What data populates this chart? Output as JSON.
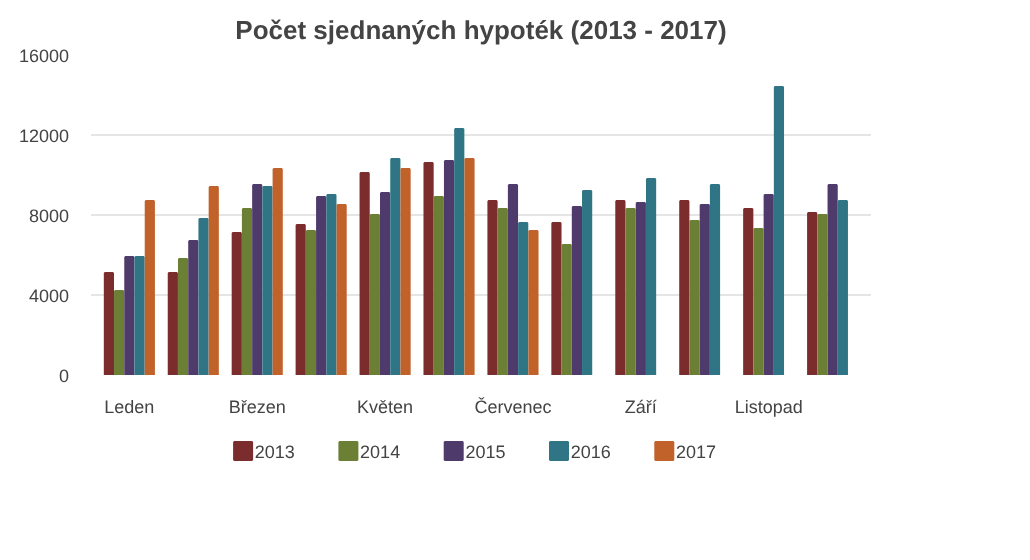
{
  "chart_data": {
    "type": "bar",
    "title": "Počet sjednaných hypoték (2013 - 2017)",
    "categories": [
      "Leden",
      null,
      "Březen",
      null,
      "Květen",
      null,
      "Červenec",
      null,
      "Září",
      null,
      "Listopad",
      null
    ],
    "series": [
      {
        "name": "2013",
        "color": "#7b2c2c",
        "values": [
          5100,
          5100,
          7100,
          7500,
          10100,
          10600,
          8700,
          7600,
          8700,
          8700,
          8300,
          8100
        ]
      },
      {
        "name": "2014",
        "color": "#6b7f35",
        "values": [
          4200,
          5800,
          8300,
          7200,
          8000,
          8900,
          8300,
          6500,
          8300,
          7700,
          7300,
          8000
        ]
      },
      {
        "name": "2015",
        "color": "#4f3b6b",
        "values": [
          5900,
          6700,
          9500,
          8900,
          9100,
          10700,
          9500,
          8400,
          8600,
          8500,
          9000,
          9500
        ]
      },
      {
        "name": "2016",
        "color": "#2f7585",
        "values": [
          5900,
          7800,
          9400,
          9000,
          10800,
          12300,
          7600,
          9200,
          9800,
          9500,
          14400,
          8700
        ]
      },
      {
        "name": "2017",
        "color": "#c0622a",
        "values": [
          8700,
          9400,
          10300,
          8500,
          10300,
          10800,
          7200,
          null,
          null,
          null,
          null,
          null
        ]
      }
    ],
    "ylim": [
      0,
      16000
    ],
    "yticks": [
      0,
      4000,
      8000,
      12000,
      16000
    ],
    "grid": "y",
    "legend": "bottom"
  }
}
